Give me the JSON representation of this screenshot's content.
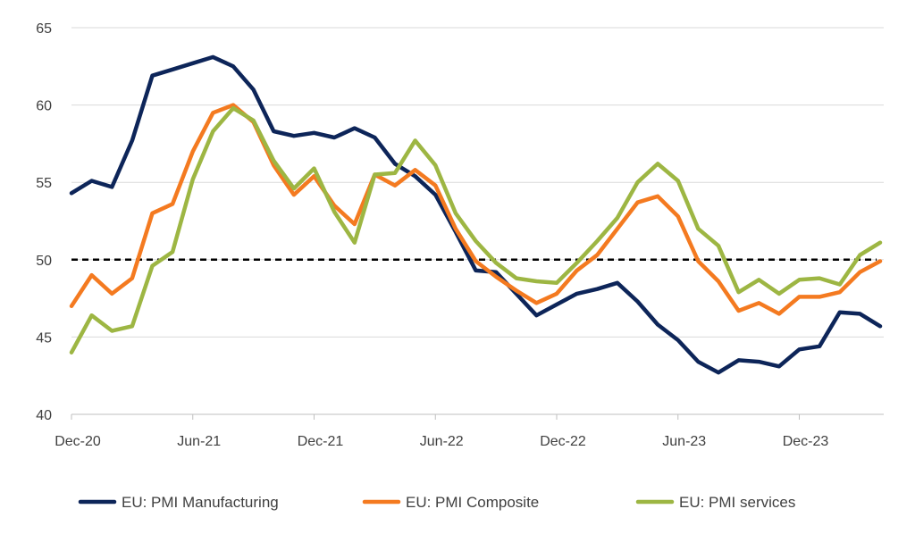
{
  "chart_data": {
    "type": "line",
    "title": "",
    "xlabel": "",
    "ylabel": "",
    "ylim": [
      40,
      65
    ],
    "yticks": [
      40,
      45,
      50,
      55,
      60,
      65
    ],
    "x_start": "Dec-20",
    "x_tick_labels": [
      {
        "label": "Dec-20",
        "index": 0
      },
      {
        "label": "Jun-21",
        "index": 6
      },
      {
        "label": "Dec-21",
        "index": 12
      },
      {
        "label": "Jun-22",
        "index": 18
      },
      {
        "label": "Dec-22",
        "index": 24
      },
      {
        "label": "Jun-23",
        "index": 30
      },
      {
        "label": "Dec-23",
        "index": 36
      }
    ],
    "grid": true,
    "legend_position": "bottom",
    "reference_line": {
      "value": 50,
      "style": "dashed",
      "color": "#000000"
    },
    "series": [
      {
        "name": "EU: PMI Manufacturing",
        "color": "#0d2559",
        "values": [
          54.3,
          55.1,
          54.7,
          57.7,
          61.9,
          62.3,
          62.7,
          63.1,
          62.5,
          61.0,
          58.3,
          58.0,
          58.2,
          57.9,
          58.5,
          57.9,
          56.2,
          55.4,
          54.2,
          51.8,
          49.3,
          49.2,
          47.8,
          46.4,
          47.1,
          47.8,
          48.1,
          48.5,
          47.3,
          45.8,
          44.8,
          43.4,
          42.7,
          43.5,
          43.4,
          43.1,
          44.2,
          44.4,
          46.6,
          46.5,
          45.7
        ]
      },
      {
        "name": "EU: PMI Composite",
        "color": "#f47a20",
        "values": [
          47.0,
          49.0,
          47.8,
          48.8,
          53.0,
          53.6,
          57.0,
          59.5,
          60.0,
          58.9,
          56.1,
          54.2,
          55.4,
          53.5,
          52.3,
          55.5,
          54.8,
          55.8,
          54.8,
          52.0,
          49.9,
          48.9,
          48.0,
          47.2,
          47.8,
          49.3,
          50.3,
          52.0,
          53.7,
          54.1,
          52.8,
          49.9,
          48.6,
          46.7,
          47.2,
          46.5,
          47.6,
          47.6,
          47.9,
          49.2,
          49.9
        ]
      },
      {
        "name": "EU: PMI services",
        "color": "#9db643",
        "values": [
          44.0,
          46.4,
          45.4,
          45.7,
          49.6,
          50.5,
          55.2,
          58.3,
          59.8,
          59.0,
          56.4,
          54.6,
          55.9,
          53.1,
          51.1,
          55.5,
          55.6,
          57.7,
          56.1,
          53.0,
          51.2,
          49.8,
          48.8,
          48.6,
          48.5,
          49.8,
          51.2,
          52.7,
          55.0,
          56.2,
          55.1,
          52.0,
          50.9,
          47.9,
          48.7,
          47.8,
          48.7,
          48.8,
          48.4,
          50.3,
          51.1
        ]
      }
    ]
  }
}
